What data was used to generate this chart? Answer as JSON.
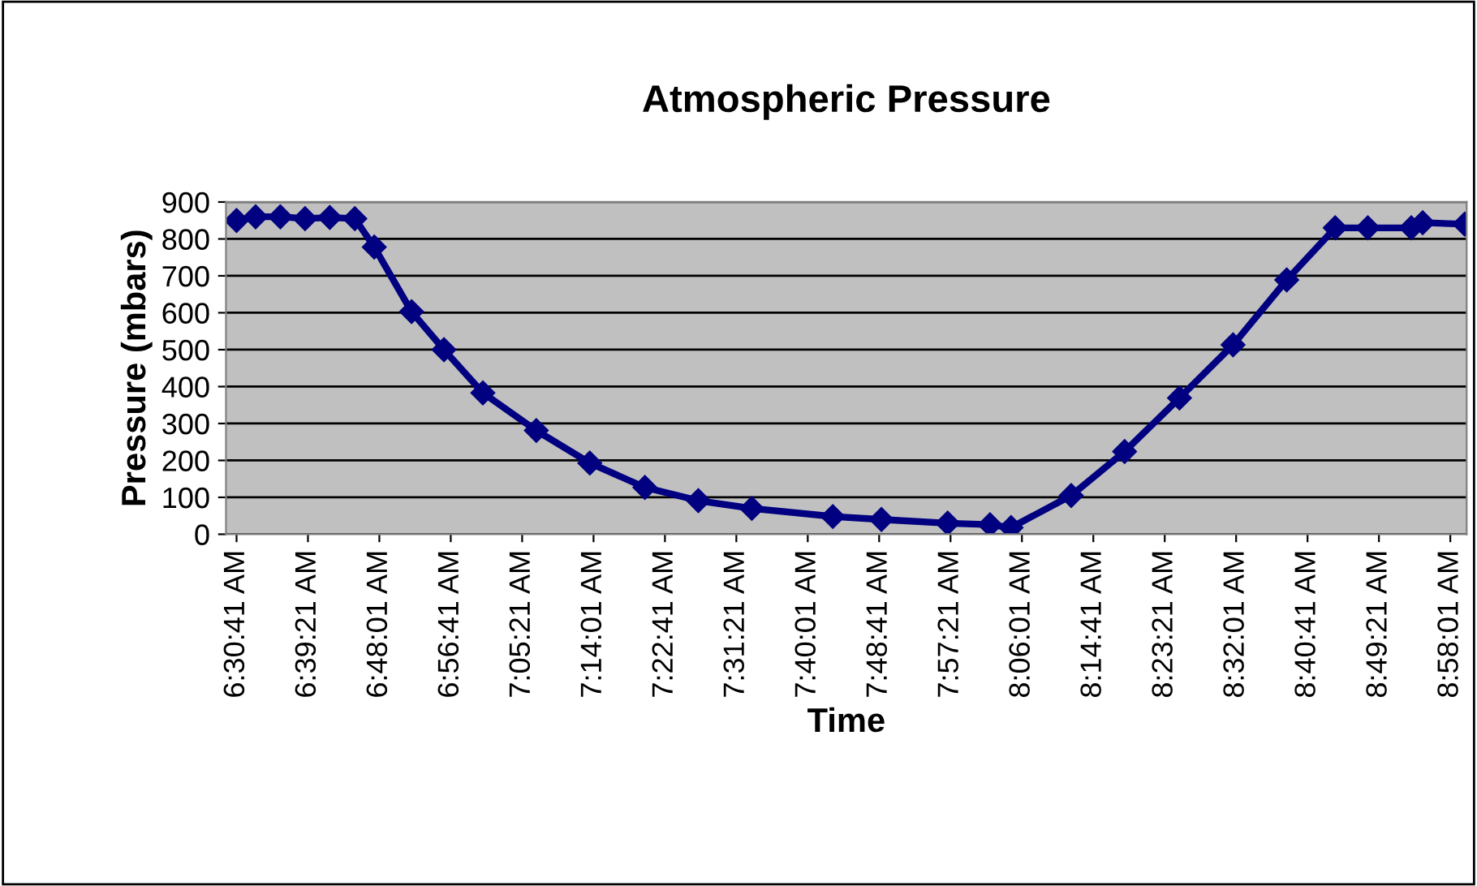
{
  "chart_data": {
    "type": "line",
    "title": "Atmospheric Pressure",
    "xlabel": "Time",
    "ylabel": "Pressure (mbars)",
    "x": [
      6.5114,
      6.55,
      6.6,
      6.65,
      6.7,
      6.7507,
      6.79,
      6.8654,
      6.931,
      7.0097,
      7.1178,
      7.226,
      7.3375,
      7.4456,
      7.5538,
      7.7177,
      7.816,
      7.95,
      8.0357,
      8.0783,
      8.2,
      8.308,
      8.419,
      8.5274,
      8.636,
      8.734,
      8.8,
      8.888,
      8.911,
      8.996
    ],
    "series": [
      {
        "color": "#000080",
        "values": [
          850,
          860,
          860,
          855,
          858,
          855,
          778,
          603,
          500,
          383,
          281,
          193,
          127,
          91,
          70,
          48,
          40,
          30,
          26,
          18,
          105,
          224,
          369,
          513,
          689,
          830,
          830,
          830,
          844,
          840
        ]
      }
    ],
    "xlim": [
      6.49,
      9.0
    ],
    "ylim": [
      0,
      900
    ],
    "yticks": [
      0,
      100,
      200,
      300,
      400,
      500,
      600,
      700,
      800,
      900
    ],
    "xticks": [
      {
        "value": 6.51139,
        "label": "6:30:41 AM"
      },
      {
        "value": 6.65583,
        "label": "6:39:21 AM"
      },
      {
        "value": 6.80028,
        "label": "6:48:01 AM"
      },
      {
        "value": 6.94472,
        "label": "6:56:41 AM"
      },
      {
        "value": 7.08917,
        "label": "7:05:21 AM"
      },
      {
        "value": 7.23361,
        "label": "7:14:01 AM"
      },
      {
        "value": 7.37806,
        "label": "7:22:41 AM"
      },
      {
        "value": 7.5225,
        "label": "7:31:21 AM"
      },
      {
        "value": 7.66694,
        "label": "7:40:01 AM"
      },
      {
        "value": 7.81139,
        "label": "7:48:41 AM"
      },
      {
        "value": 7.95583,
        "label": "7:57:21 AM"
      },
      {
        "value": 8.10028,
        "label": "8:06:01 AM"
      },
      {
        "value": 8.24472,
        "label": "8:14:41 AM"
      },
      {
        "value": 8.38917,
        "label": "8:23:21 AM"
      },
      {
        "value": 8.53361,
        "label": "8:32:01 AM"
      },
      {
        "value": 8.67806,
        "label": "8:40:41 AM"
      },
      {
        "value": 8.8225,
        "label": "8:49:21 AM"
      },
      {
        "value": 8.96694,
        "label": "8:58:01 AM"
      }
    ],
    "grid": "y",
    "marker": "diamond",
    "line_style": "solid"
  }
}
